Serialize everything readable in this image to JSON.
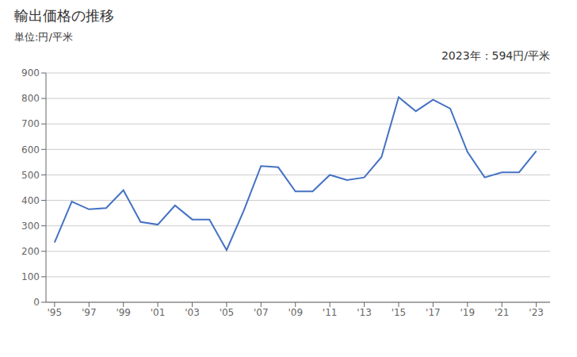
{
  "chart_data": {
    "type": "line",
    "title": "輸出価格の推移",
    "ylabel": "単位:円/平米",
    "annotation": "2023年：594円/平米",
    "x": [
      1995,
      1996,
      1997,
      1998,
      1999,
      2000,
      2001,
      2002,
      2003,
      2004,
      2005,
      2006,
      2007,
      2008,
      2009,
      2010,
      2011,
      2012,
      2013,
      2014,
      2015,
      2016,
      2017,
      2018,
      2019,
      2020,
      2021,
      2022,
      2023
    ],
    "values": [
      235,
      395,
      365,
      370,
      440,
      315,
      305,
      380,
      325,
      325,
      205,
      360,
      535,
      530,
      435,
      435,
      500,
      480,
      490,
      570,
      805,
      750,
      795,
      760,
      590,
      490,
      510,
      510,
      594
    ],
    "xlim": [
      1994.5,
      2023.8
    ],
    "xticks": [
      {
        "value": 1995,
        "label": "'95"
      },
      {
        "value": 1997,
        "label": "'97"
      },
      {
        "value": 1999,
        "label": "'99"
      },
      {
        "value": 2001,
        "label": "'01"
      },
      {
        "value": 2003,
        "label": "'03"
      },
      {
        "value": 2005,
        "label": "'05"
      },
      {
        "value": 2007,
        "label": "'07"
      },
      {
        "value": 2009,
        "label": "'09"
      },
      {
        "value": 2011,
        "label": "'11"
      },
      {
        "value": 2013,
        "label": "'13"
      },
      {
        "value": 2015,
        "label": "'15"
      },
      {
        "value": 2017,
        "label": "'17"
      },
      {
        "value": 2019,
        "label": "'19"
      },
      {
        "value": 2021,
        "label": "'21"
      },
      {
        "value": 2023,
        "label": "'23"
      }
    ],
    "ylim": [
      0,
      900
    ],
    "yticks": [
      0,
      100,
      200,
      300,
      400,
      500,
      600,
      700,
      800,
      900
    ],
    "color": "#4472C4",
    "grid": true
  }
}
